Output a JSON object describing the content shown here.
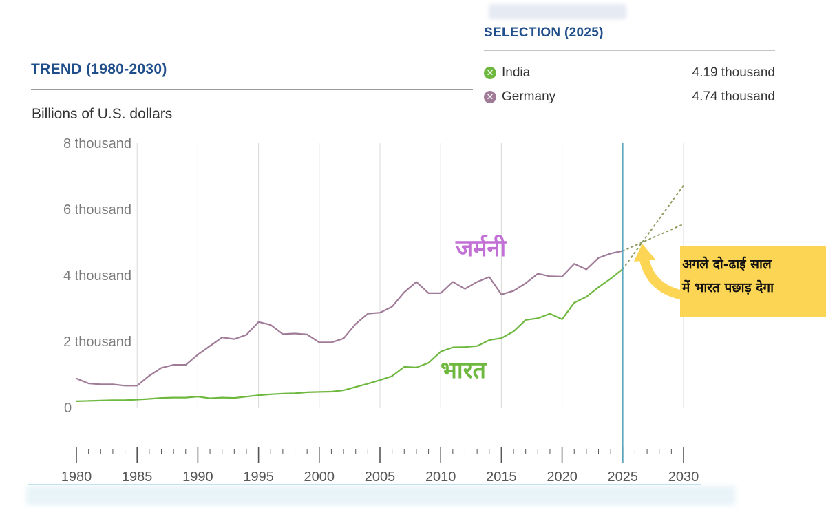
{
  "selection": {
    "title": "SELECTION (2025)",
    "items": [
      {
        "name": "India",
        "value": "4.19 thousand",
        "color": "#6fb83f"
      },
      {
        "name": "Germany",
        "value": "4.74 thousand",
        "color": "#a07b98"
      }
    ]
  },
  "trend": {
    "title": "TREND (1980-2030)"
  },
  "annotation": {
    "line1": "अगले दो-ढाई साल",
    "line2": "में भारत पछाड़ देगा",
    "arrow_color": "#fdd555"
  },
  "chart_data": {
    "type": "line",
    "title": "TREND (1980-2030)",
    "ylabel": "Billions of U.S. dollars",
    "ylim": [
      0,
      8000
    ],
    "yticks": [
      {
        "value": 0,
        "label": "0"
      },
      {
        "value": 2000,
        "label": "2 thousand"
      },
      {
        "value": 4000,
        "label": "4 thousand"
      },
      {
        "value": 6000,
        "label": "6 thousand"
      },
      {
        "value": 8000,
        "label": "8 thousand"
      }
    ],
    "xlim": [
      1980,
      2030
    ],
    "xticks": [
      1980,
      1985,
      1990,
      1995,
      2000,
      2005,
      2010,
      2015,
      2020,
      2025,
      2030
    ],
    "selected_year": 2025,
    "grid": true,
    "series": [
      {
        "name": "Germany",
        "label": "जर्मनी",
        "color": "#a07b98",
        "label_color": "#c26fd6",
        "x": [
          1980,
          1981,
          1982,
          1983,
          1984,
          1985,
          1986,
          1987,
          1988,
          1989,
          1990,
          1991,
          1992,
          1993,
          1994,
          1995,
          1996,
          1997,
          1998,
          1999,
          2000,
          2001,
          2002,
          2003,
          2004,
          2005,
          2006,
          2007,
          2008,
          2009,
          2010,
          2011,
          2012,
          2013,
          2014,
          2015,
          2016,
          2017,
          2018,
          2019,
          2020,
          2021,
          2022,
          2023,
          2024,
          2025
        ],
        "values": [
          880,
          730,
          700,
          700,
          660,
          660,
          960,
          1200,
          1290,
          1290,
          1600,
          1860,
          2120,
          2070,
          2200,
          2590,
          2500,
          2220,
          2240,
          2210,
          1970,
          1970,
          2090,
          2530,
          2840,
          2870,
          3050,
          3490,
          3800,
          3460,
          3460,
          3800,
          3590,
          3800,
          3950,
          3420,
          3530,
          3760,
          4050,
          3970,
          3960,
          4350,
          4180,
          4530,
          4660,
          4740
        ],
        "projection": {
          "x": [
            2025,
            2030
          ],
          "values": [
            4740,
            5550
          ]
        }
      },
      {
        "name": "India",
        "label": "भारत",
        "color": "#6fb83f",
        "label_color": "#6fb83f",
        "x": [
          1980,
          1981,
          1982,
          1983,
          1984,
          1985,
          1986,
          1987,
          1988,
          1989,
          1990,
          1991,
          1992,
          1993,
          1994,
          1995,
          1996,
          1997,
          1998,
          1999,
          2000,
          2001,
          2002,
          2003,
          2004,
          2005,
          2006,
          2007,
          2008,
          2009,
          2010,
          2011,
          2012,
          2013,
          2014,
          2015,
          2016,
          2017,
          2018,
          2019,
          2020,
          2021,
          2022,
          2023,
          2024,
          2025
        ],
        "values": [
          190,
          200,
          210,
          220,
          220,
          240,
          260,
          290,
          300,
          300,
          330,
          280,
          300,
          290,
          330,
          370,
          400,
          420,
          430,
          460,
          470,
          480,
          520,
          620,
          720,
          830,
          950,
          1230,
          1210,
          1350,
          1690,
          1820,
          1830,
          1860,
          2040,
          2100,
          2300,
          2650,
          2700,
          2840,
          2670,
          3170,
          3350,
          3640,
          3900,
          4190
        ],
        "projection": {
          "x": [
            2025,
            2030
          ],
          "values": [
            4190,
            6720
          ]
        }
      }
    ]
  }
}
